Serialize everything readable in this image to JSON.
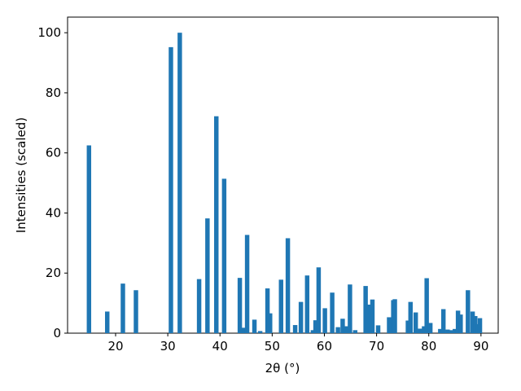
{
  "chart_data": {
    "type": "bar",
    "xlabel": "2θ (°)",
    "ylabel": "Intensities (scaled)",
    "color": "#1f77b4",
    "x": [
      14.9,
      18.4,
      21.4,
      23.9,
      30.6,
      32.3,
      36.0,
      37.6,
      39.3,
      40.8,
      43.8,
      44.6,
      45.2,
      46.6,
      47.7,
      49.1,
      49.6,
      51.7,
      53.0,
      54.4,
      55.5,
      56.7,
      57.8,
      58.3,
      58.9,
      60.1,
      61.5,
      62.6,
      63.5,
      64.2,
      64.9,
      65.9,
      67.9,
      68.4,
      69.2,
      70.3,
      72.4,
      73.2,
      73.5,
      76.0,
      76.5,
      77.5,
      78.3,
      79.1,
      79.6,
      80.3,
      82.2,
      82.8,
      83.6,
      84.2,
      85.0,
      85.6,
      86.1,
      87.5,
      88.4,
      88.9,
      89.4,
      89.8
    ],
    "values": [
      62.5,
      7.2,
      16.5,
      14.3,
      95.2,
      100,
      18.0,
      38.2,
      72.2,
      51.4,
      18.4,
      1.8,
      32.7,
      4.5,
      0.7,
      14.9,
      6.6,
      17.8,
      31.6,
      2.7,
      10.4,
      19.2,
      1.0,
      4.3,
      21.9,
      8.3,
      13.5,
      2.0,
      4.8,
      2.3,
      16.2,
      1.0,
      15.7,
      9.5,
      11.2,
      2.6,
      5.3,
      11.0,
      11.3,
      4.2,
      10.4,
      6.9,
      1.5,
      2.3,
      18.3,
      3.4,
      1.4,
      8.0,
      1.2,
      1.0,
      1.4,
      7.5,
      6.2,
      14.3,
      7.2,
      5.7,
      3.0,
      5.0
    ],
    "xlim": [
      10.8,
      93.3
    ],
    "ylim": [
      0,
      105.2
    ],
    "xticks": [
      20,
      30,
      40,
      50,
      60,
      70,
      80,
      90
    ],
    "yticks": [
      0,
      20,
      40,
      60,
      80,
      100
    ]
  }
}
